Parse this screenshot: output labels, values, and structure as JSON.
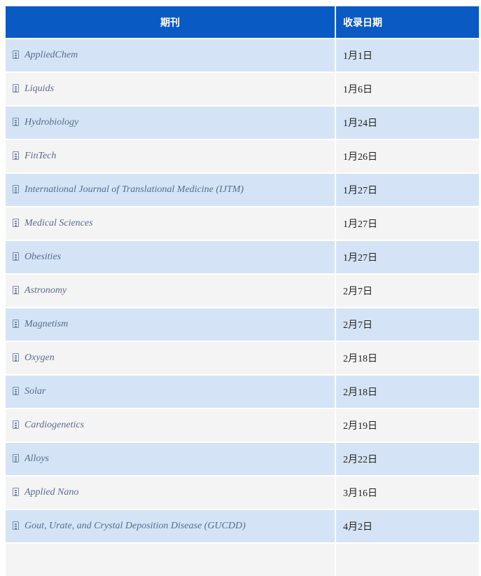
{
  "header": {
    "journal": "期刊",
    "date": "收录日期"
  },
  "rows": [
    {
      "journal": "AppliedChem",
      "date": "1月1日"
    },
    {
      "journal": "Liquids",
      "date": "1月6日"
    },
    {
      "journal": "Hydrobiology",
      "date": "1月24日"
    },
    {
      "journal": "FinTech",
      "date": "1月26日"
    },
    {
      "journal": "International Journal of Translational Medicine (IJTM)",
      "date": "1月27日"
    },
    {
      "journal": "Medical Sciences",
      "date": "1月27日"
    },
    {
      "journal": "Obesities",
      "date": "1月27日"
    },
    {
      "journal": "Astronomy",
      "date": "2月7日"
    },
    {
      "journal": "Magnetism",
      "date": "2月7日"
    },
    {
      "journal": "Oxygen",
      "date": "2月18日"
    },
    {
      "journal": "Solar",
      "date": "2月18日"
    },
    {
      "journal": "Cardiogenetics",
      "date": "2月19日"
    },
    {
      "journal": "Alloys",
      "date": "2月22日"
    },
    {
      "journal": "Applied Nano",
      "date": "3月16日"
    },
    {
      "journal": "Gout, Urate, and Crystal Deposition Disease (GUCDD)",
      "date": "4月2日"
    }
  ]
}
